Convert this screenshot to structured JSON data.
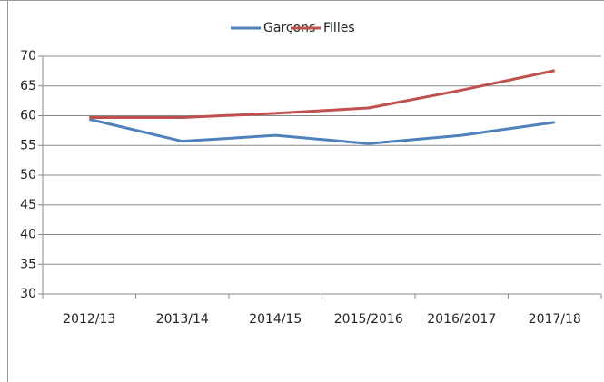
{
  "chart_data": {
    "type": "line",
    "categories": [
      "2012/13",
      "2013/14",
      "2014/15",
      "2015/2016",
      "2016/2017",
      "2017/18"
    ],
    "series": [
      {
        "name": "Garçons",
        "color": "#4f81bd",
        "values": [
          59.4,
          55.7,
          56.7,
          55.3,
          56.7,
          58.9
        ]
      },
      {
        "name": "Filles",
        "color": "#c0504d",
        "values": [
          59.7,
          59.7,
          60.4,
          61.3,
          64.3,
          67.6
        ]
      }
    ],
    "ylim": [
      30,
      70
    ],
    "yticks": [
      30,
      35,
      40,
      45,
      50,
      55,
      60,
      65,
      70
    ],
    "grid": true,
    "legend": "top"
  }
}
